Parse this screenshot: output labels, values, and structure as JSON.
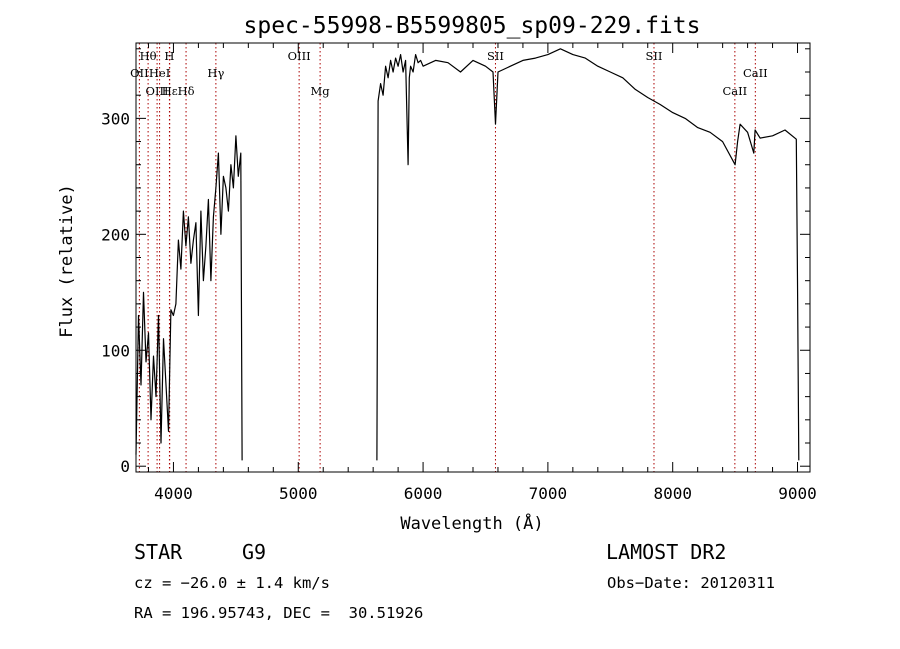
{
  "chart_data": {
    "type": "line",
    "title": "spec-55998-B5599805_sp09-229.fits",
    "xlabel": "Wavelength (Å)",
    "ylabel": "Flux (relative)",
    "xlim": [
      3700,
      9100
    ],
    "ylim": [
      -5,
      365
    ],
    "x_ticks": [
      4000,
      5000,
      6000,
      7000,
      8000,
      9000
    ],
    "y_ticks": [
      0,
      100,
      200,
      300
    ],
    "grid": false,
    "line_color": "#000000",
    "marker_color": "#aa0000",
    "series": [
      {
        "segments": [
          {
            "x": [
              3700,
              3720,
              3740,
              3760,
              3780,
              3800,
              3820,
              3840,
              3860,
              3880,
              3900,
              3920,
              3940,
              3960,
              3980,
              4000,
              4020,
              4040,
              4060,
              4080,
              4100,
              4120,
              4140,
              4160,
              4180,
              4200,
              4220,
              4240,
              4260,
              4280,
              4300,
              4320,
              4340,
              4360,
              4380,
              4400,
              4420,
              4440,
              4460,
              4480,
              4500,
              4520,
              4540,
              4550
            ],
            "y": [
              10,
              130,
              70,
              150,
              90,
              115,
              40,
              95,
              60,
              130,
              20,
              110,
              70,
              30,
              135,
              130,
              140,
              195,
              170,
              220,
              190,
              215,
              175,
              195,
              210,
              130,
              220,
              160,
              190,
              230,
              160,
              215,
              240,
              270,
              200,
              250,
              240,
              220,
              260,
              240,
              285,
              250,
              270,
              5
            ]
          },
          {
            "x": [
              5630,
              5640,
              5660,
              5680,
              5700,
              5720,
              5740,
              5760,
              5780,
              5800,
              5820,
              5840,
              5860,
              5880,
              5890,
              5900,
              5920,
              5940,
              5960,
              5980,
              6000,
              6100,
              6200,
              6300,
              6400,
              6500,
              6560,
              6580,
              6600,
              6700,
              6800,
              6900,
              7000,
              7100,
              7200,
              7300,
              7400,
              7500,
              7600,
              7700,
              7800,
              7900,
              8000,
              8100,
              8200,
              8300,
              8400,
              8500,
              8520,
              8540,
              8600,
              8650,
              8660,
              8700,
              8800,
              8900,
              8990,
              9000,
              9010
            ],
            "y": [
              5,
              315,
              330,
              320,
              345,
              335,
              350,
              340,
              352,
              345,
              355,
              340,
              350,
              260,
              335,
              345,
              340,
              355,
              348,
              350,
              345,
              350,
              348,
              340,
              350,
              345,
              340,
              295,
              340,
              345,
              350,
              352,
              355,
              360,
              355,
              352,
              345,
              340,
              335,
              325,
              318,
              312,
              305,
              300,
              292,
              288,
              280,
              260,
              280,
              295,
              288,
              270,
              290,
              283,
              285,
              290,
              282,
              160,
              5
            ]
          }
        ]
      }
    ],
    "line_markers": [
      {
        "label": "Hθ",
        "wavelength": 3797,
        "row": 1
      },
      {
        "label": "OII",
        "wavelength": 3727,
        "row": 2
      },
      {
        "label": "OIII",
        "wavelength": 3869,
        "row": 3
      },
      {
        "label": "HeI",
        "wavelength": 3889,
        "row": 2
      },
      {
        "label": "Hε",
        "wavelength": 3970,
        "row": 3
      },
      {
        "label": "H",
        "wavelength": 3968,
        "row": 1
      },
      {
        "label": "Hδ",
        "wavelength": 4101,
        "row": 3
      },
      {
        "label": "Hγ",
        "wavelength": 4340,
        "row": 2
      },
      {
        "label": "OIII",
        "wavelength": 5007,
        "row": 1
      },
      {
        "label": "Mg",
        "wavelength": 5175,
        "row": 3
      },
      {
        "label": "SII",
        "wavelength": 6580,
        "row": 0
      },
      {
        "label": "SII",
        "wavelength": 7850,
        "row": 1
      },
      {
        "label": "CaII",
        "wavelength": 8498,
        "row": 3
      },
      {
        "label": "CaII",
        "wavelength": 8662,
        "row": 2
      }
    ]
  },
  "info": {
    "object_class": "STAR",
    "subclass": "G9",
    "survey": "LAMOST DR2",
    "cz": "cz = −26.0 ± 1.4 km/s",
    "obs_date": "Obs−Date: 20120311",
    "coords": "RA = 196.95743, DEC =  30.51926"
  }
}
